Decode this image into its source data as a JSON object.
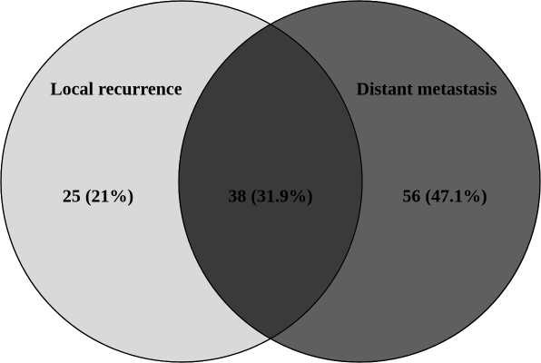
{
  "sets": [
    {
      "label": "Local recurrence"
    },
    {
      "label": "Distant metastasis"
    }
  ],
  "regions": [
    {
      "label": "25 (21%)"
    },
    {
      "label": "38 (31.9%)"
    },
    {
      "label": "56 (47.1%)"
    }
  ]
}
